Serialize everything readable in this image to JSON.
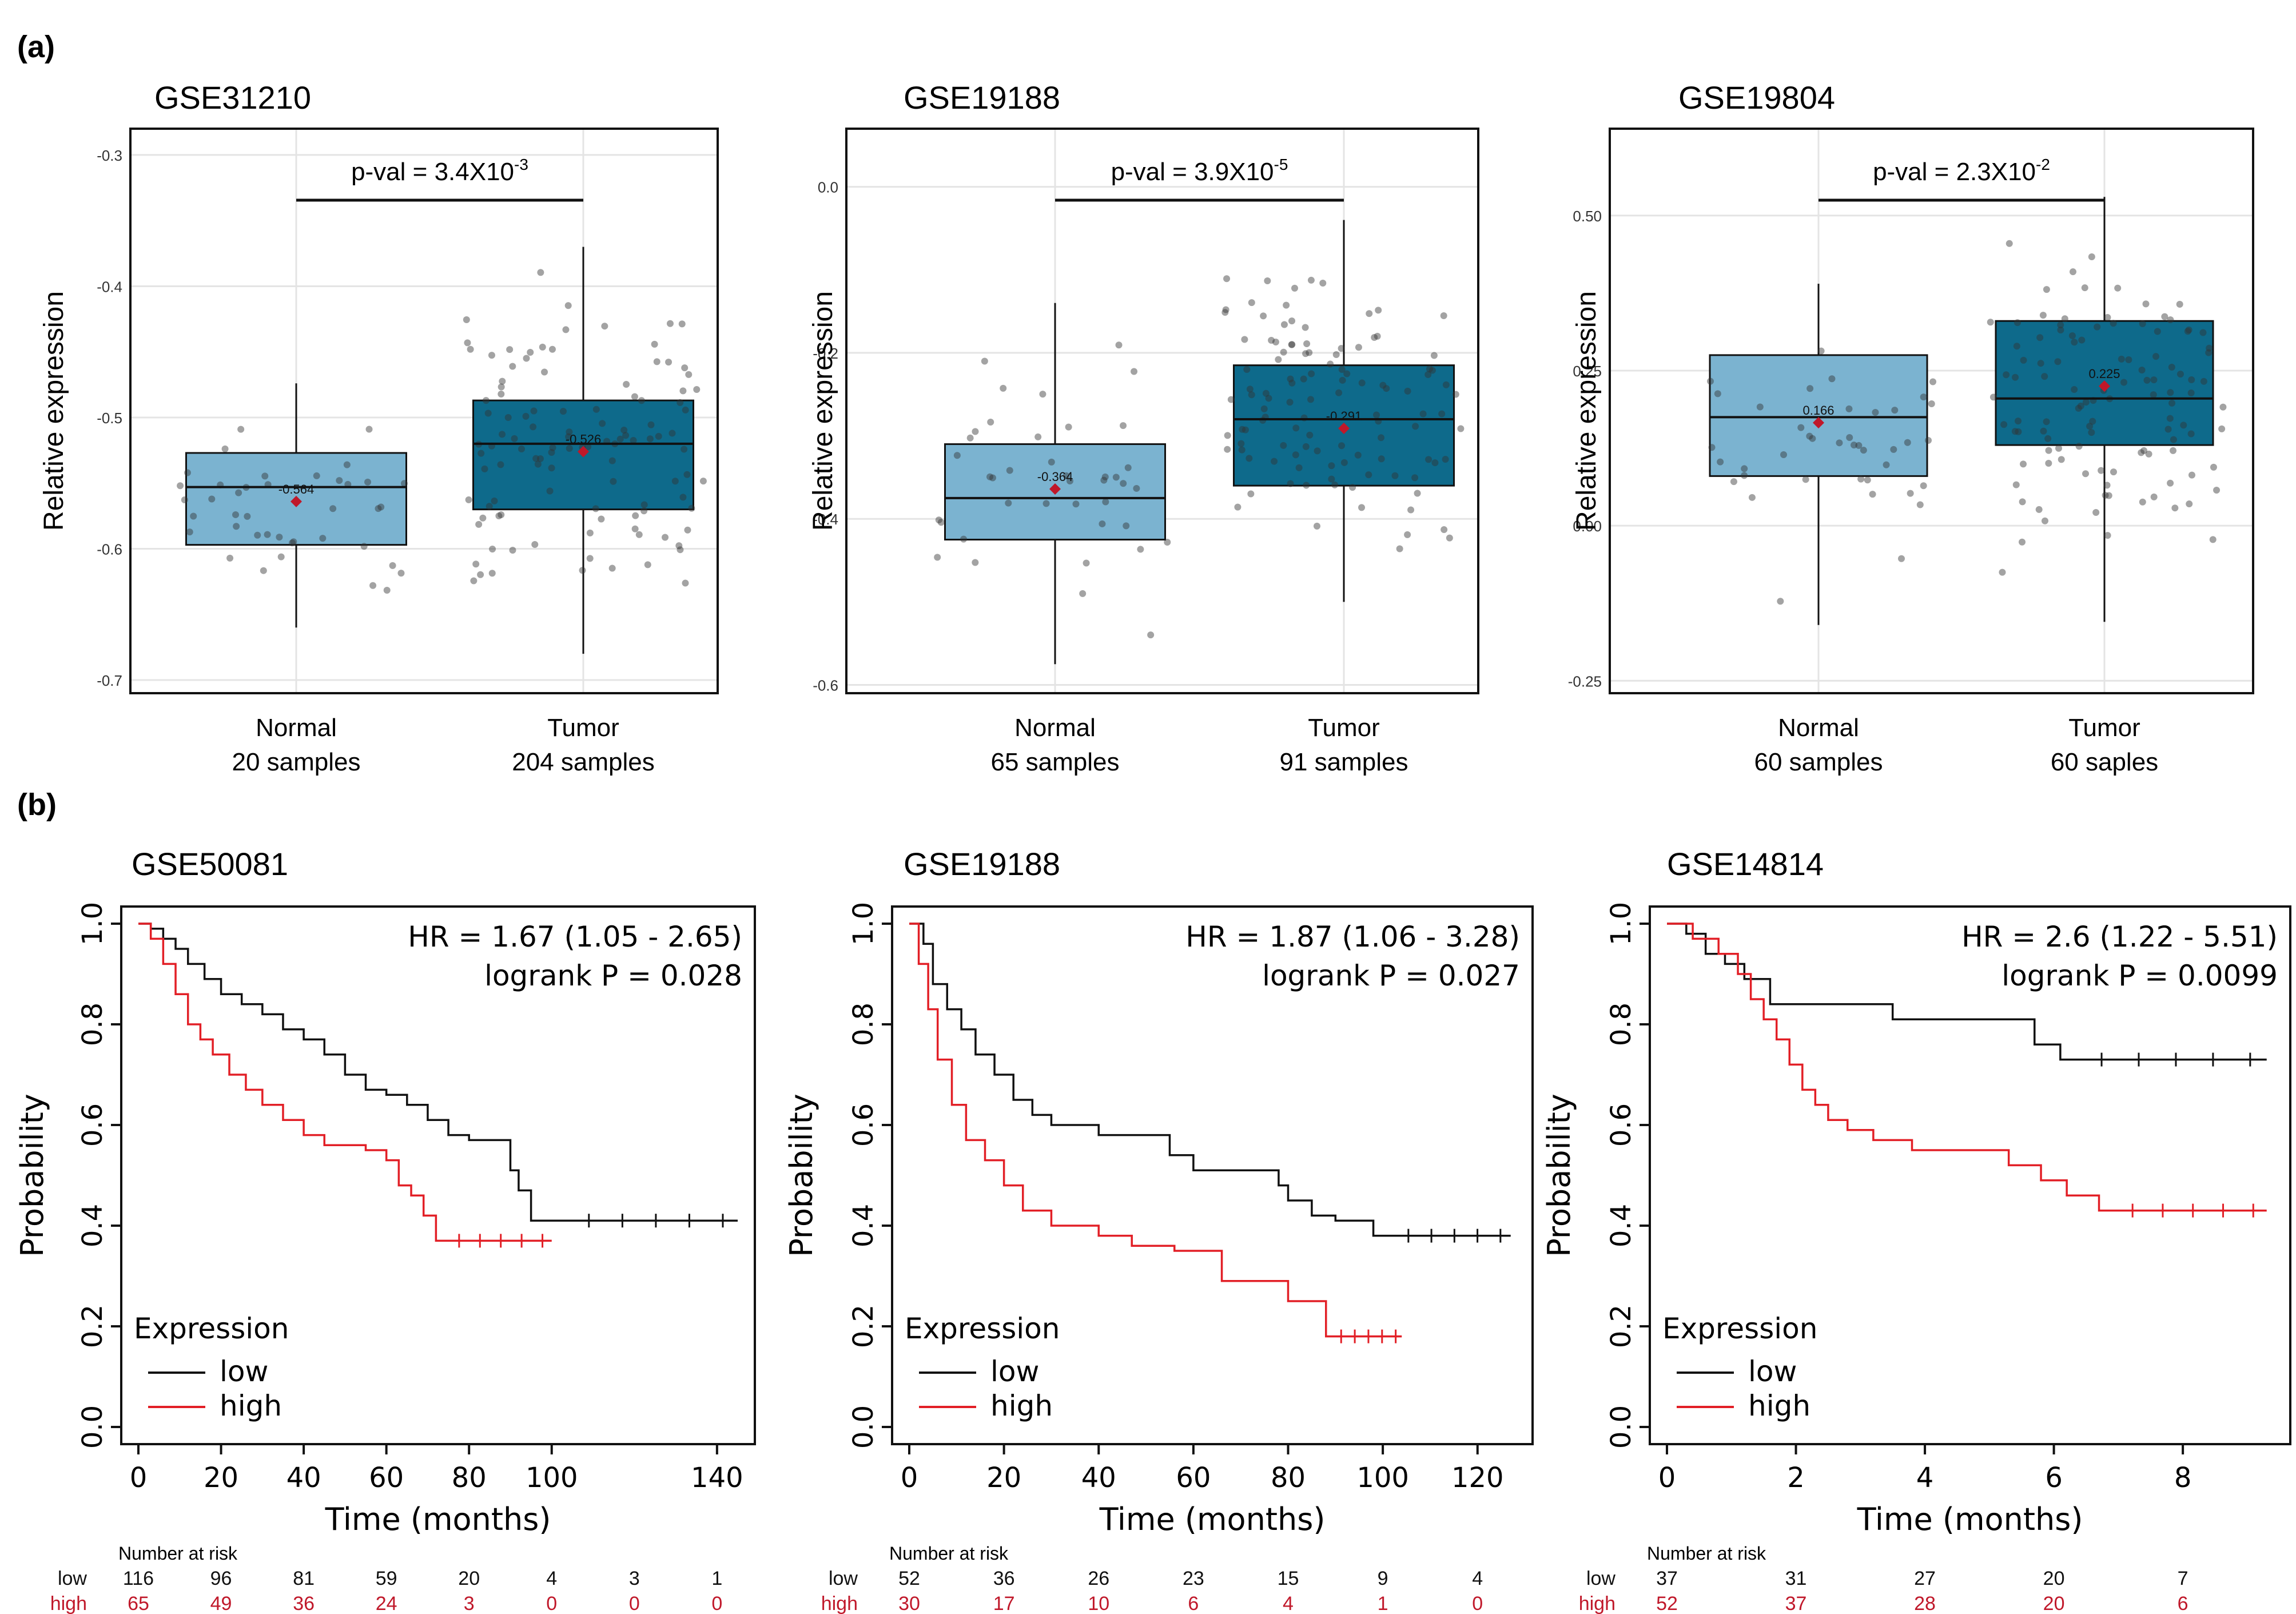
{
  "figure": {
    "panel_a_label": "(a)",
    "panel_b_label": "(b)"
  },
  "chart_data": [
    {
      "type": "box",
      "panel": "a",
      "title": "GSE31210",
      "ylabel": "Relative expression",
      "ylim": [
        -0.71,
        -0.28
      ],
      "yticks": [
        -0.3,
        -0.4,
        -0.5,
        -0.6,
        -0.7
      ],
      "ytick_labels": [
        "-0.3",
        "-0.4",
        "-0.5",
        "-0.6",
        "-0.7"
      ],
      "pval": {
        "prefix": "p-val = 3.4X10",
        "exponent": "-3"
      },
      "groups": [
        {
          "name": "Normal",
          "samples_label": "20 samples",
          "color": "#7bb3d0",
          "q1": -0.597,
          "median": -0.553,
          "q3": -0.527,
          "whisker_low": -0.66,
          "whisker_high": -0.474,
          "mean": -0.564,
          "mean_label": "-0.564"
        },
        {
          "name": "Tumor",
          "samples_label": "204 samples",
          "color": "#0e6a8b",
          "q1": -0.57,
          "median": -0.52,
          "q3": -0.487,
          "whisker_low": -0.68,
          "whisker_high": -0.37,
          "mean": -0.526,
          "mean_label": "-0.526"
        }
      ]
    },
    {
      "type": "box",
      "panel": "a",
      "title": "GSE19188",
      "ylabel": "Relative expression",
      "ylim": [
        -0.61,
        0.07
      ],
      "yticks": [
        0.0,
        -0.2,
        -0.4,
        -0.6
      ],
      "ytick_labels": [
        "0.0",
        "-0.2",
        "-0.4",
        "-0.6"
      ],
      "pval": {
        "prefix": "p-val = 3.9X10",
        "exponent": "-5"
      },
      "groups": [
        {
          "name": "Normal",
          "samples_label": "65 samples",
          "color": "#7bb3d0",
          "q1": -0.425,
          "median": -0.375,
          "q3": -0.31,
          "whisker_low": -0.575,
          "whisker_high": -0.14,
          "mean": -0.364,
          "mean_label": "-0.364"
        },
        {
          "name": "Tumor",
          "samples_label": "91 samples",
          "color": "#0e6a8b",
          "q1": -0.36,
          "median": -0.28,
          "q3": -0.215,
          "whisker_low": -0.5,
          "whisker_high": -0.04,
          "mean": -0.291,
          "mean_label": "-0.291"
        }
      ]
    },
    {
      "type": "box",
      "panel": "a",
      "title": "GSE19804",
      "ylabel": "Relative expression",
      "ylim": [
        -0.27,
        0.64
      ],
      "yticks": [
        0.5,
        0.25,
        0.0,
        -0.25
      ],
      "ytick_labels": [
        "0.50",
        "0.25",
        "0.00",
        "-0.25"
      ],
      "pval": {
        "prefix": "p-val = 2.3X10",
        "exponent": "-2"
      },
      "groups": [
        {
          "name": "Normal",
          "samples_label": "60 samples",
          "color": "#7bb3d0",
          "q1": 0.08,
          "median": 0.175,
          "q3": 0.275,
          "whisker_low": -0.16,
          "whisker_high": 0.39,
          "mean": 0.166,
          "mean_label": "0.166"
        },
        {
          "name": "Tumor",
          "samples_label": "60 saples",
          "color": "#0e6a8b",
          "q1": 0.13,
          "median": 0.205,
          "q3": 0.33,
          "whisker_low": -0.155,
          "whisker_high": 0.53,
          "mean": 0.225,
          "mean_label": "0.225"
        }
      ]
    },
    {
      "type": "kaplan-meier",
      "panel": "b",
      "title": "GSE50081",
      "xlabel": "Time (months)",
      "ylabel": "Probability",
      "xlim": [
        0,
        145
      ],
      "ylim": [
        0,
        1
      ],
      "xticks": [
        0,
        20,
        40,
        60,
        80,
        100,
        140
      ],
      "yticks": [
        0,
        0.2,
        0.4,
        0.6,
        0.8,
        1.0
      ],
      "ytick_labels": [
        "0.0",
        "0.2",
        "0.4",
        "0.6",
        "0.8",
        "1.0"
      ],
      "hr_text": "HR = 1.67 (1.05 - 2.65)",
      "logrank_text": "logrank P = 0.028",
      "legend_title": "Expression",
      "series": [
        {
          "name": "low",
          "color": "#111111",
          "x": [
            0,
            3,
            6,
            9,
            12,
            16,
            20,
            25,
            30,
            35,
            40,
            45,
            50,
            55,
            60,
            65,
            70,
            75,
            80,
            85,
            90,
            92,
            95,
            100,
            145
          ],
          "y": [
            1.0,
            0.99,
            0.97,
            0.95,
            0.92,
            0.89,
            0.86,
            0.84,
            0.82,
            0.79,
            0.77,
            0.74,
            0.7,
            0.67,
            0.66,
            0.64,
            0.61,
            0.58,
            0.57,
            0.57,
            0.51,
            0.47,
            0.41,
            0.41,
            0.41
          ]
        },
        {
          "name": "high",
          "color": "#e21f26",
          "x": [
            0,
            3,
            6,
            9,
            12,
            15,
            18,
            22,
            26,
            30,
            35,
            40,
            45,
            50,
            55,
            60,
            63,
            66,
            69,
            72,
            100
          ],
          "y": [
            1.0,
            0.97,
            0.92,
            0.86,
            0.8,
            0.77,
            0.74,
            0.7,
            0.67,
            0.64,
            0.61,
            0.58,
            0.56,
            0.56,
            0.55,
            0.53,
            0.48,
            0.46,
            0.42,
            0.37,
            0.37
          ]
        }
      ],
      "risk_table": {
        "header": "Number at risk",
        "times": [
          0,
          20,
          40,
          60,
          80,
          100,
          120,
          140
        ],
        "low": [
          "116",
          "96",
          "81",
          "59",
          "20",
          "4",
          "3",
          "1"
        ],
        "high": [
          "65",
          "49",
          "36",
          "24",
          "3",
          "0",
          "0",
          "0"
        ]
      }
    },
    {
      "type": "kaplan-meier",
      "panel": "b",
      "title": "GSE19188",
      "xlabel": "Time (months)",
      "ylabel": "Probability",
      "xlim": [
        0,
        128
      ],
      "ylim": [
        0,
        1
      ],
      "xticks": [
        0,
        20,
        40,
        60,
        80,
        100,
        120
      ],
      "yticks": [
        0,
        0.2,
        0.4,
        0.6,
        0.8,
        1.0
      ],
      "ytick_labels": [
        "0.0",
        "0.2",
        "0.4",
        "0.6",
        "0.8",
        "1.0"
      ],
      "hr_text": "HR = 1.87 (1.06 - 3.28)",
      "logrank_text": "logrank P = 0.027",
      "legend_title": "Expression",
      "series": [
        {
          "name": "low",
          "color": "#111111",
          "x": [
            0,
            3,
            5,
            8,
            11,
            14,
            18,
            22,
            26,
            30,
            40,
            50,
            55,
            60,
            70,
            78,
            80,
            85,
            90,
            98,
            100,
            127
          ],
          "y": [
            1.0,
            0.96,
            0.88,
            0.83,
            0.79,
            0.74,
            0.7,
            0.65,
            0.62,
            0.6,
            0.58,
            0.58,
            0.54,
            0.51,
            0.51,
            0.48,
            0.45,
            0.42,
            0.41,
            0.38,
            0.38,
            0.38
          ]
        },
        {
          "name": "high",
          "color": "#e21f26",
          "x": [
            0,
            2,
            4,
            6,
            9,
            12,
            16,
            20,
            24,
            30,
            40,
            47,
            56,
            66,
            80,
            88,
            104
          ],
          "y": [
            1.0,
            0.92,
            0.83,
            0.73,
            0.64,
            0.57,
            0.53,
            0.48,
            0.43,
            0.4,
            0.38,
            0.36,
            0.35,
            0.29,
            0.25,
            0.18,
            0.18
          ]
        }
      ],
      "risk_table": {
        "header": "Number at risk",
        "times": [
          0,
          20,
          40,
          60,
          80,
          100,
          120
        ],
        "low": [
          "52",
          "36",
          "26",
          "23",
          "15",
          "9",
          "4"
        ],
        "high": [
          "30",
          "17",
          "10",
          "6",
          "4",
          "1",
          "0"
        ]
      }
    },
    {
      "type": "kaplan-meier",
      "panel": "b",
      "title": "GSE14814",
      "xlabel": "Time (months)",
      "ylabel": "Probability",
      "xlim": [
        0,
        9.4
      ],
      "ylim": [
        0,
        1
      ],
      "xticks": [
        0,
        2,
        4,
        6,
        8
      ],
      "yticks": [
        0,
        0.2,
        0.4,
        0.6,
        0.8,
        1.0
      ],
      "ytick_labels": [
        "0.0",
        "0.2",
        "0.4",
        "0.6",
        "0.8",
        "1.0"
      ],
      "hr_text": "HR = 2.6 (1.22 - 5.51)",
      "logrank_text": "logrank P = 0.0099",
      "legend_title": "Expression",
      "series": [
        {
          "name": "low",
          "color": "#111111",
          "x": [
            0,
            0.3,
            0.6,
            0.9,
            1.2,
            1.6,
            3.5,
            5.7,
            6.1,
            9.3
          ],
          "y": [
            1.0,
            0.98,
            0.94,
            0.92,
            0.89,
            0.84,
            0.81,
            0.76,
            0.73,
            0.73
          ]
        },
        {
          "name": "high",
          "color": "#e21f26",
          "x": [
            0,
            0.4,
            0.8,
            1.1,
            1.3,
            1.5,
            1.7,
            1.9,
            2.1,
            2.3,
            2.5,
            2.8,
            3.2,
            3.8,
            4.8,
            5.3,
            5.8,
            6.2,
            6.7,
            9.3
          ],
          "y": [
            1.0,
            0.97,
            0.94,
            0.9,
            0.85,
            0.81,
            0.77,
            0.72,
            0.67,
            0.64,
            0.61,
            0.59,
            0.57,
            0.55,
            0.55,
            0.52,
            0.49,
            0.46,
            0.43,
            0.43
          ]
        }
      ],
      "risk_table": {
        "header": "Number at risk",
        "times": [
          0,
          2,
          4,
          6,
          8
        ],
        "low": [
          "37",
          "31",
          "27",
          "20",
          "7"
        ],
        "high": [
          "52",
          "37",
          "28",
          "20",
          "6"
        ]
      }
    }
  ]
}
